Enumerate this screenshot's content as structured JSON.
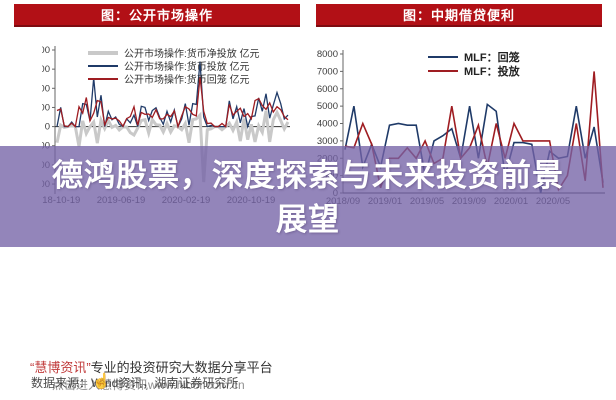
{
  "overlay": {
    "title": "德鸿股票，深度探索与未来投资前景展望",
    "color": "#7563a7",
    "opacity": 0.78,
    "text_color": "#ffffff"
  },
  "footer": {
    "brand": "“慧博资讯”",
    "tagline": "专业的投资研究大数据分享平台",
    "source_line": "数据来源：Wind资讯，湖南证券研究所",
    "ghost_line": "点击进入慧博资讯www.hibor.com.cn",
    "hand_icon": "☝",
    "brand_color": "#c03a3a"
  },
  "chart_data": [
    {
      "type": "line",
      "title": "图：公开市场操作",
      "header_bg": "#b21016",
      "unit": "亿元",
      "ylim": [
        -17600,
        20000
      ],
      "y_ticks": [
        20000,
        15000,
        10000,
        5000,
        0,
        -5000,
        -10000,
        -15000
      ],
      "x_tick_labels": [
        "2018-10-19",
        "2019-06-19",
        "2020-02-19",
        "2020-10-19"
      ],
      "grid": false,
      "legend_position": "top-center",
      "series": [
        {
          "name": "公开市场操作:货币净投放 亿元",
          "color": "#c9c9c9",
          "width": 3,
          "values": [
            -4200,
            400,
            -200,
            0,
            300,
            0,
            -5200,
            1500,
            -1800,
            0,
            1200,
            -4300,
            1700,
            -500,
            1600,
            -200,
            300,
            -900,
            -100,
            -100,
            -1600,
            -2200,
            -400,
            1600,
            1800,
            -1700,
            1800,
            500,
            400,
            -1400,
            800,
            -1400,
            200,
            0,
            -800,
            800,
            -4200,
            1800,
            2000,
            3000,
            -14500,
            -800,
            -600,
            0,
            0,
            -800,
            0,
            900,
            -1000,
            1200,
            -3800,
            2100,
            -3400,
            600,
            -4000,
            200,
            -1500,
            4100,
            -4000,
            1800,
            3700,
            1600,
            -600,
            1200
          ]
        },
        {
          "name": "公开市场操作:货币投放 亿元",
          "color": "#1f3a68",
          "width": 1.3,
          "values": [
            0,
            5000,
            0,
            0,
            1200,
            0,
            0,
            6000,
            5800,
            1500,
            12700,
            2500,
            8200,
            0,
            4000,
            1800,
            2500,
            600,
            0,
            2000,
            1000,
            3000,
            0,
            5300,
            5000,
            1600,
            4200,
            4900,
            2400,
            600,
            4000,
            1200,
            4300,
            0,
            2000,
            6000,
            400,
            6000,
            5800,
            17000,
            2500,
            0,
            300,
            0,
            0,
            0,
            0,
            6700,
            2000,
            5200,
            1000,
            4700,
            0,
            2600,
            2800,
            7500,
            4000,
            8600,
            2200,
            5600,
            8900,
            6000,
            2000,
            3000
          ]
        },
        {
          "name": "公开市场操作:货币回笼 亿元",
          "color": "#9f1d22",
          "width": 1.3,
          "values": [
            4200,
            4600,
            200,
            0,
            900,
            0,
            5200,
            3500,
            7600,
            1500,
            3500,
            6800,
            6500,
            500,
            2400,
            2000,
            2200,
            1500,
            100,
            2100,
            2600,
            5200,
            400,
            3700,
            3200,
            3300,
            2400,
            4400,
            2000,
            2000,
            3200,
            2600,
            4100,
            0,
            2800,
            5200,
            4600,
            3200,
            2800,
            13000,
            4000,
            800,
            900,
            0,
            0,
            800,
            0,
            5800,
            3000,
            4000,
            4800,
            2600,
            3400,
            2000,
            6800,
            7300,
            5500,
            4500,
            6200,
            3800,
            5200,
            4400,
            2600,
            1800
          ]
        }
      ]
    },
    {
      "type": "line",
      "title": "图：中期借贷便利",
      "header_bg": "#b21016",
      "ylim": [
        0,
        8000
      ],
      "y_ticks": [
        8000,
        7000,
        6000,
        5000,
        4000,
        3000,
        2000,
        1000,
        0
      ],
      "x_tick_labels": [
        "2018/09",
        "2019/01",
        "2019/05",
        "2019/09",
        "2020/01",
        "2020/05"
      ],
      "grid": false,
      "legend_position": "top-center",
      "series": [
        {
          "name": "MLF：回笼",
          "color": "#1f3a68",
          "width": 1.6,
          "values": [
            2500,
            5000,
            1500,
            2800,
            1500,
            3900,
            4000,
            3900,
            3900,
            1000,
            3000,
            3300,
            3700,
            2000,
            5000,
            2000,
            5100,
            4700,
            1000,
            2900,
            2900,
            2800,
            0,
            2400,
            2000,
            2100,
            5000,
            2000,
            3800,
            600
          ]
        },
        {
          "name": "MLF：投放",
          "color": "#9f1d22",
          "width": 1.6,
          "values": [
            2700,
            2600,
            4000,
            2800,
            300,
            2000,
            2000,
            2600,
            2000,
            3000,
            1700,
            2000,
            5000,
            2000,
            2600,
            3900,
            1500,
            4000,
            2000,
            4000,
            3000,
            3000,
            3000,
            3000,
            200,
            1000,
            4000,
            700,
            7000,
            300
          ]
        }
      ]
    }
  ]
}
